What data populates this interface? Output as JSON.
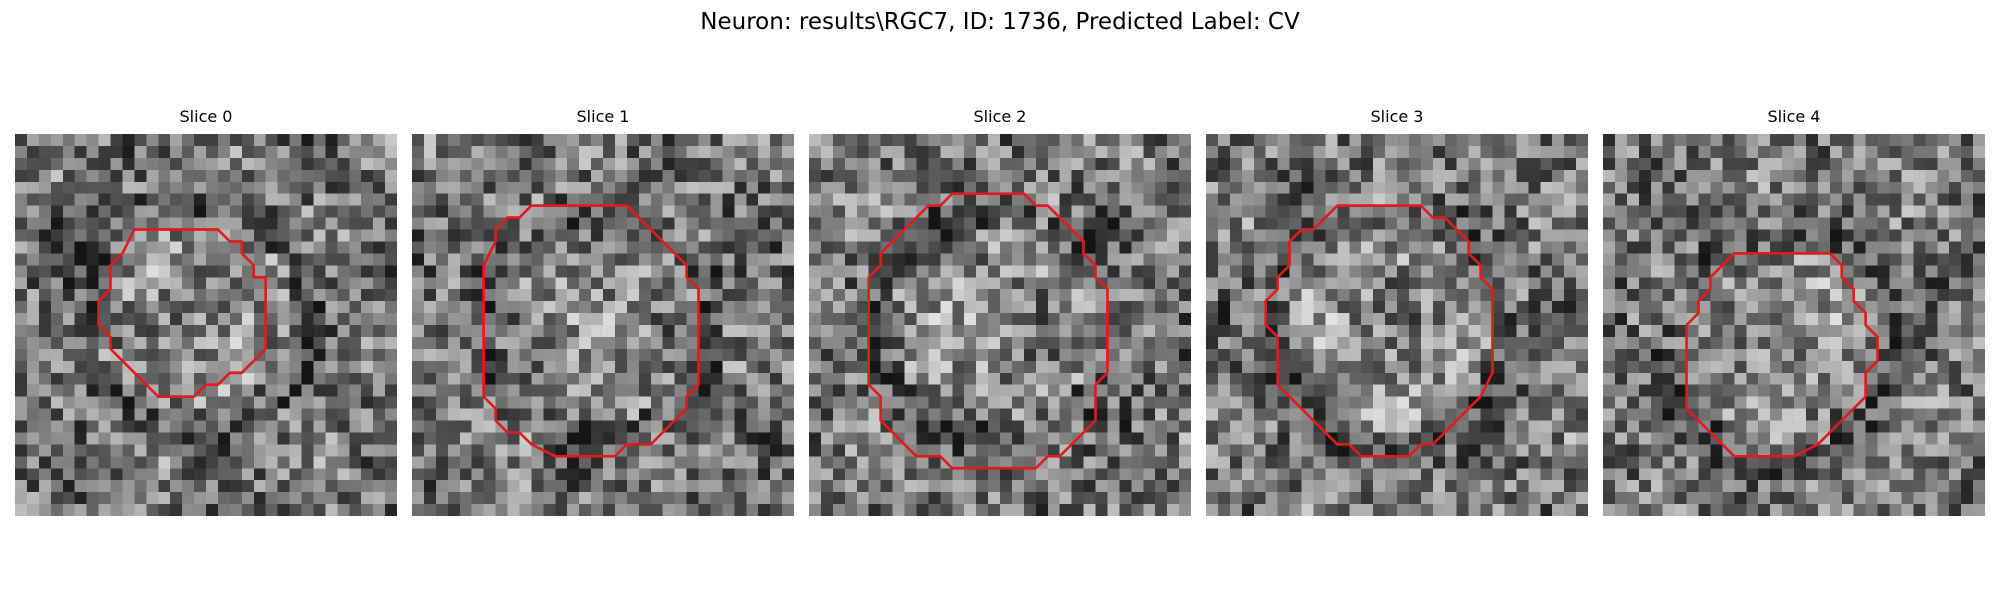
{
  "figure": {
    "title": "Neuron: results\\RGC7, ID: 1736, Predicted Label: CV"
  },
  "grid_size": 32,
  "colors": {
    "contour": "#e31a1c",
    "background": "#ffffff"
  },
  "slices": [
    {
      "title": "Slice 0",
      "center": [
        15.0,
        15.0
      ],
      "contour": [
        [
          10.0,
          8.0
        ],
        [
          17.0,
          8.0
        ],
        [
          18.0,
          9.0
        ],
        [
          19.0,
          9.0
        ],
        [
          19.0,
          10.0
        ],
        [
          20.0,
          11.0
        ],
        [
          20.0,
          12.0
        ],
        [
          21.0,
          12.0
        ],
        [
          21.0,
          18.0
        ],
        [
          20.0,
          19.0
        ],
        [
          19.0,
          20.0
        ],
        [
          18.0,
          20.0
        ],
        [
          17.0,
          21.0
        ],
        [
          16.0,
          21.0
        ],
        [
          15.0,
          22.0
        ],
        [
          12.0,
          22.0
        ],
        [
          11.0,
          21.0
        ],
        [
          10.0,
          20.0
        ],
        [
          9.0,
          19.0
        ],
        [
          8.0,
          18.0
        ],
        [
          8.0,
          17.0
        ],
        [
          7.0,
          16.0
        ],
        [
          7.0,
          14.0
        ],
        [
          8.0,
          13.0
        ],
        [
          8.0,
          11.0
        ],
        [
          9.0,
          10.0
        ],
        [
          9.0,
          10.0
        ]
      ],
      "seed": 101
    },
    {
      "title": "Slice 1",
      "center": [
        15.5,
        16.0
      ],
      "contour": [
        [
          10.0,
          6.0
        ],
        [
          18.0,
          6.0
        ],
        [
          20.0,
          8.0
        ],
        [
          21.0,
          9.0
        ],
        [
          22.0,
          10.0
        ],
        [
          23.0,
          11.0
        ],
        [
          23.0,
          12.0
        ],
        [
          24.0,
          13.0
        ],
        [
          24.0,
          21.0
        ],
        [
          23.0,
          22.0
        ],
        [
          23.0,
          23.0
        ],
        [
          22.0,
          24.0
        ],
        [
          21.0,
          25.0
        ],
        [
          20.0,
          26.0
        ],
        [
          18.0,
          26.0
        ],
        [
          17.0,
          27.0
        ],
        [
          12.0,
          27.0
        ],
        [
          10.0,
          26.0
        ],
        [
          9.0,
          25.0
        ],
        [
          8.0,
          25.0
        ],
        [
          7.0,
          24.0
        ],
        [
          7.0,
          23.0
        ],
        [
          6.0,
          22.0
        ],
        [
          6.0,
          21.0
        ],
        [
          6.0,
          21.0
        ],
        [
          6.0,
          12.0
        ],
        [
          6.0,
          11.0
        ],
        [
          7.0,
          9.0
        ],
        [
          7.0,
          8.0
        ],
        [
          8.0,
          7.0
        ],
        [
          9.0,
          7.0
        ]
      ],
      "seed": 202
    },
    {
      "title": "Slice 2",
      "center": [
        15.5,
        16.0
      ],
      "contour": [
        [
          12.0,
          5.0
        ],
        [
          18.0,
          5.0
        ],
        [
          19.0,
          6.0
        ],
        [
          20.0,
          6.0
        ],
        [
          21.0,
          7.0
        ],
        [
          22.0,
          8.0
        ],
        [
          23.0,
          9.0
        ],
        [
          23.0,
          10.0
        ],
        [
          24.0,
          11.0
        ],
        [
          24.0,
          12.0
        ],
        [
          25.0,
          13.0
        ],
        [
          25.0,
          20.0
        ],
        [
          24.0,
          21.0
        ],
        [
          24.0,
          24.0
        ],
        [
          23.0,
          25.0
        ],
        [
          22.0,
          26.0
        ],
        [
          21.0,
          27.0
        ],
        [
          20.0,
          27.0
        ],
        [
          19.0,
          28.0
        ],
        [
          12.0,
          28.0
        ],
        [
          11.0,
          27.0
        ],
        [
          9.0,
          27.0
        ],
        [
          8.0,
          26.0
        ],
        [
          7.0,
          25.0
        ],
        [
          6.0,
          24.0
        ],
        [
          6.0,
          22.0
        ],
        [
          5.0,
          21.0
        ],
        [
          5.0,
          12.0
        ],
        [
          6.0,
          11.0
        ],
        [
          6.0,
          10.0
        ],
        [
          7.0,
          9.0
        ],
        [
          8.0,
          8.0
        ],
        [
          9.0,
          7.0
        ],
        [
          10.0,
          6.0
        ],
        [
          11.0,
          6.0
        ]
      ],
      "seed": 303
    },
    {
      "title": "Slice 3",
      "center": [
        15.5,
        16.5
      ],
      "contour": [
        [
          11.0,
          6.0
        ],
        [
          18.0,
          6.0
        ],
        [
          19.0,
          7.0
        ],
        [
          20.0,
          7.0
        ],
        [
          21.0,
          8.0
        ],
        [
          22.0,
          9.0
        ],
        [
          22.0,
          10.0
        ],
        [
          23.0,
          11.0
        ],
        [
          23.0,
          12.0
        ],
        [
          24.0,
          13.0
        ],
        [
          24.0,
          20.0
        ],
        [
          23.0,
          22.0
        ],
        [
          22.0,
          23.0
        ],
        [
          21.0,
          24.0
        ],
        [
          20.0,
          25.0
        ],
        [
          19.0,
          26.0
        ],
        [
          18.0,
          26.0
        ],
        [
          17.0,
          27.0
        ],
        [
          13.0,
          27.0
        ],
        [
          12.0,
          26.0
        ],
        [
          11.0,
          26.0
        ],
        [
          10.0,
          25.0
        ],
        [
          9.0,
          24.0
        ],
        [
          8.0,
          23.0
        ],
        [
          7.0,
          22.0
        ],
        [
          6.0,
          21.0
        ],
        [
          6.0,
          17.0
        ],
        [
          5.0,
          16.0
        ],
        [
          5.0,
          14.0
        ],
        [
          6.0,
          13.0
        ],
        [
          6.0,
          12.0
        ],
        [
          7.0,
          11.0
        ],
        [
          7.0,
          9.0
        ],
        [
          8.0,
          8.0
        ],
        [
          9.0,
          8.0
        ],
        [
          10.0,
          7.0
        ]
      ],
      "seed": 404
    },
    {
      "title": "Slice 4",
      "center": [
        15.0,
        18.0
      ],
      "contour": [
        [
          11.0,
          10.0
        ],
        [
          19.0,
          10.0
        ],
        [
          20.0,
          11.0
        ],
        [
          20.0,
          12.0
        ],
        [
          21.0,
          13.0
        ],
        [
          21.0,
          14.0
        ],
        [
          22.0,
          15.0
        ],
        [
          22.0,
          16.0
        ],
        [
          23.0,
          17.0
        ],
        [
          23.0,
          19.0
        ],
        [
          22.0,
          20.0
        ],
        [
          22.0,
          22.0
        ],
        [
          21.0,
          23.0
        ],
        [
          20.0,
          24.0
        ],
        [
          19.0,
          25.0
        ],
        [
          18.0,
          26.0
        ],
        [
          16.0,
          27.0
        ],
        [
          11.0,
          27.0
        ],
        [
          10.0,
          26.0
        ],
        [
          9.0,
          25.0
        ],
        [
          8.0,
          24.0
        ],
        [
          7.0,
          23.0
        ],
        [
          7.0,
          16.0
        ],
        [
          8.0,
          15.0
        ],
        [
          8.0,
          14.0
        ],
        [
          9.0,
          13.0
        ],
        [
          9.0,
          12.0
        ],
        [
          10.0,
          11.0
        ]
      ],
      "seed": 505
    }
  ]
}
